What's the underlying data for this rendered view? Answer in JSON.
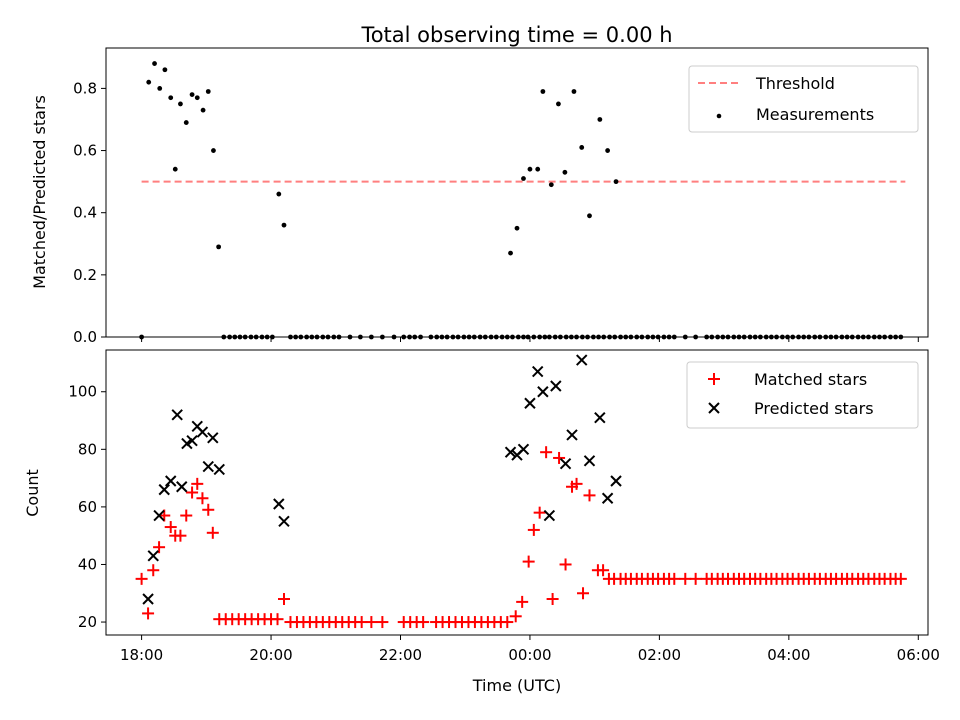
{
  "chart_data": [
    {
      "type": "scatter",
      "title": "Total observing time = 0.00 h",
      "ylabel": "Matched/Predicted stars",
      "xlabel": "",
      "xlim": [
        17.45,
        30.15
      ],
      "ylim": [
        0.0,
        0.93
      ],
      "yticks": [
        0.0,
        0.2,
        0.4,
        0.6,
        0.8
      ],
      "ytick_labels": [
        "0.0",
        "0.2",
        "0.4",
        "0.6",
        "0.8"
      ],
      "legend_position": "upper right",
      "grid": false,
      "threshold": {
        "label": "Threshold",
        "value": 0.5,
        "x_range": [
          18.0,
          29.8
        ],
        "color": "#ff7f7f",
        "style": "dashed"
      },
      "series": [
        {
          "name": "Measurements",
          "marker": "dot",
          "color": "#000000",
          "x": [
            18.0,
            18.11,
            18.2,
            18.28,
            18.36,
            18.45,
            18.52,
            18.6,
            18.69,
            18.78,
            18.86,
            18.95,
            19.03,
            19.11,
            19.19,
            19.27,
            19.36,
            19.44,
            19.52,
            19.6,
            19.69,
            19.77,
            19.86,
            19.94,
            20.02,
            20.12,
            20.2,
            20.3,
            20.38,
            20.46,
            20.55,
            20.63,
            20.71,
            20.8,
            20.88,
            20.97,
            21.05,
            21.22,
            21.38,
            21.55,
            21.72,
            21.9,
            22.05,
            22.14,
            22.22,
            22.31,
            22.47,
            22.56,
            22.64,
            22.72,
            22.81,
            22.89,
            22.98,
            23.06,
            23.14,
            23.23,
            23.31,
            23.4,
            23.48,
            23.57,
            23.65,
            23.73,
            23.82,
            23.9,
            23.97,
            24.06,
            24.15,
            24.23,
            24.3,
            24.39,
            24.47,
            24.56,
            24.64,
            24.72,
            24.81,
            24.89,
            24.98,
            25.06,
            25.14,
            25.23,
            25.31,
            25.4,
            25.48,
            25.56,
            25.65,
            25.73,
            25.82,
            25.9,
            25.98,
            26.07,
            26.15,
            26.23,
            26.4,
            26.56,
            26.73,
            26.81,
            26.9,
            26.98,
            27.06,
            27.15,
            27.23,
            27.31,
            27.4,
            27.48,
            27.56,
            27.65,
            27.73,
            27.81,
            27.9,
            27.98,
            28.06,
            28.15,
            28.23,
            28.31,
            28.4,
            28.48,
            28.57,
            28.65,
            28.73,
            28.82,
            28.9,
            28.98,
            29.07,
            29.15,
            29.23,
            29.32,
            29.4,
            29.48,
            29.57,
            29.65,
            29.73
          ],
          "y": [
            0.0,
            0.82,
            0.88,
            0.8,
            0.86,
            0.77,
            0.54,
            0.75,
            0.69,
            0.78,
            0.77,
            0.73,
            0.79,
            0.6,
            0.29,
            0.0,
            0.0,
            0.0,
            0.0,
            0.0,
            0.0,
            0.0,
            0.0,
            0.0,
            0.0,
            0.46,
            0.36,
            0.0,
            0.0,
            0.0,
            0.0,
            0.0,
            0.0,
            0.0,
            0.0,
            0.0,
            0.0,
            0.0,
            0.0,
            0.0,
            0.0,
            0.0,
            0.0,
            0.0,
            0.0,
            0.0,
            0.0,
            0.0,
            0.0,
            0.0,
            0.0,
            0.0,
            0.0,
            0.0,
            0.0,
            0.0,
            0.0,
            0.0,
            0.0,
            0.0,
            0.0,
            0.0,
            0.0,
            0.0,
            0.0,
            0.0,
            0.0,
            0.0,
            0.0,
            0.0,
            0.0,
            0.0,
            0.0,
            0.0,
            0.0,
            0.0,
            0.0,
            0.0,
            0.0,
            0.0,
            0.0,
            0.0,
            0.0,
            0.0,
            0.0,
            0.0,
            0.0,
            0.0,
            0.0,
            0.0,
            0.0,
            0.0,
            0.0,
            0.0,
            0.0,
            0.0,
            0.0,
            0.0,
            0.0,
            0.0,
            0.0,
            0.0,
            0.0,
            0.0,
            0.0,
            0.0,
            0.0,
            0.0,
            0.0,
            0.0,
            0.0,
            0.0,
            0.0,
            0.0,
            0.0,
            0.0,
            0.0,
            0.0,
            0.0,
            0.0,
            0.0,
            0.0,
            0.0,
            0.0,
            0.0,
            0.0,
            0.0,
            0.0,
            0.0,
            0.0,
            0.0
          ]
        },
        {
          "name": "Measurements",
          "marker": "dot",
          "color": "#000000",
          "x": [
            23.7,
            23.8,
            23.9,
            24.0,
            24.12,
            24.2,
            24.33,
            24.44,
            24.54,
            24.68,
            24.8,
            24.92,
            25.08,
            25.2,
            25.33
          ],
          "y": [
            0.27,
            0.35,
            0.51,
            0.54,
            0.54,
            0.79,
            0.49,
            0.75,
            0.53,
            0.79,
            0.61,
            0.39,
            0.7,
            0.6,
            0.5
          ]
        }
      ]
    },
    {
      "type": "scatter",
      "title": "",
      "xlabel": "Time (UTC)",
      "ylabel": "Count",
      "xlim": [
        17.45,
        30.15
      ],
      "ylim": [
        15.5,
        114.5
      ],
      "yticks": [
        20,
        40,
        60,
        80,
        100
      ],
      "ytick_labels": [
        "20",
        "40",
        "60",
        "80",
        "100"
      ],
      "xticks": [
        18,
        20,
        22,
        24,
        26,
        28,
        30
      ],
      "xtick_labels": [
        "18:00",
        "20:00",
        "22:00",
        "00:00",
        "02:00",
        "04:00",
        "06:00"
      ],
      "legend_position": "upper right",
      "grid": false,
      "series": [
        {
          "name": "Matched stars",
          "marker": "plus",
          "color": "#ff0000",
          "x": [
            18.0,
            18.1,
            18.18,
            18.27,
            18.35,
            18.45,
            18.52,
            18.6,
            18.69,
            18.78,
            18.86,
            18.94,
            19.03,
            19.1,
            19.2,
            19.3,
            19.4,
            19.5,
            19.6,
            19.7,
            19.8,
            19.9,
            20.0,
            20.1,
            20.2,
            20.3,
            20.4,
            20.5,
            20.6,
            20.7,
            20.8,
            20.9,
            21.0,
            21.1,
            21.2,
            21.3,
            21.4,
            21.55,
            21.72,
            22.05,
            22.15,
            22.25,
            22.35,
            22.55,
            22.65,
            22.75,
            22.85,
            22.95,
            23.05,
            23.15,
            23.25,
            23.35,
            23.45,
            23.55,
            23.65,
            23.78,
            23.88,
            23.98,
            24.06,
            24.15,
            24.25,
            24.35,
            24.45,
            24.55,
            24.65,
            24.72,
            24.82,
            24.92,
            25.05,
            25.13,
            25.22,
            25.3,
            25.4,
            25.48,
            25.56,
            25.65,
            25.73,
            25.82,
            25.9,
            25.98,
            26.07,
            26.15,
            26.23,
            26.4,
            26.56,
            26.73,
            26.81,
            26.9,
            26.98,
            27.06,
            27.15,
            27.23,
            27.31,
            27.4,
            27.48,
            27.56,
            27.65,
            27.73,
            27.81,
            27.9,
            27.98,
            28.06,
            28.15,
            28.23,
            28.31,
            28.4,
            28.48,
            28.57,
            28.65,
            28.73,
            28.82,
            28.9,
            28.98,
            29.07,
            29.15,
            29.23,
            29.32,
            29.4,
            29.48,
            29.57,
            29.65,
            29.73
          ],
          "y": [
            35,
            23,
            38,
            46,
            57,
            53,
            50,
            50,
            57,
            65,
            68,
            63,
            59,
            51,
            21,
            21,
            21,
            21,
            21,
            21,
            21,
            21,
            21,
            21,
            28,
            20,
            20,
            20,
            20,
            20,
            20,
            20,
            20,
            20,
            20,
            20,
            20,
            20,
            20,
            20,
            20,
            20,
            20,
            20,
            20,
            20,
            20,
            20,
            20,
            20,
            20,
            20,
            20,
            20,
            20,
            22,
            27,
            41,
            52,
            58,
            79,
            28,
            77,
            40,
            67,
            68,
            30,
            64,
            38,
            38,
            35,
            35,
            35,
            35,
            35,
            35,
            35,
            35,
            35,
            35,
            35,
            35,
            35,
            35,
            35,
            35,
            35,
            35,
            35,
            35,
            35,
            35,
            35,
            35,
            35,
            35,
            35,
            35,
            35,
            35,
            35,
            35,
            35,
            35,
            35,
            35,
            35,
            35,
            35,
            35,
            35,
            35,
            35,
            35,
            35,
            35,
            35,
            35,
            35,
            35,
            35,
            35
          ]
        },
        {
          "name": "Predicted stars",
          "marker": "x",
          "color": "#000000",
          "x": [
            18.1,
            18.18,
            18.27,
            18.35,
            18.45,
            18.55,
            18.62,
            18.7,
            18.78,
            18.86,
            18.94,
            19.03,
            19.1,
            19.2,
            20.12,
            20.2,
            23.7,
            23.8,
            23.9,
            24.0,
            24.12,
            24.2,
            24.3,
            24.4,
            24.55,
            24.65,
            24.8,
            24.92,
            25.08,
            25.2,
            25.33
          ],
          "y": [
            28,
            43,
            57,
            66,
            69,
            92,
            67,
            82,
            83,
            88,
            86,
            74,
            84,
            73,
            61,
            55,
            79,
            78,
            80,
            96,
            107,
            100,
            57,
            102,
            75,
            85,
            111,
            76,
            91,
            63,
            69
          ]
        }
      ]
    }
  ]
}
